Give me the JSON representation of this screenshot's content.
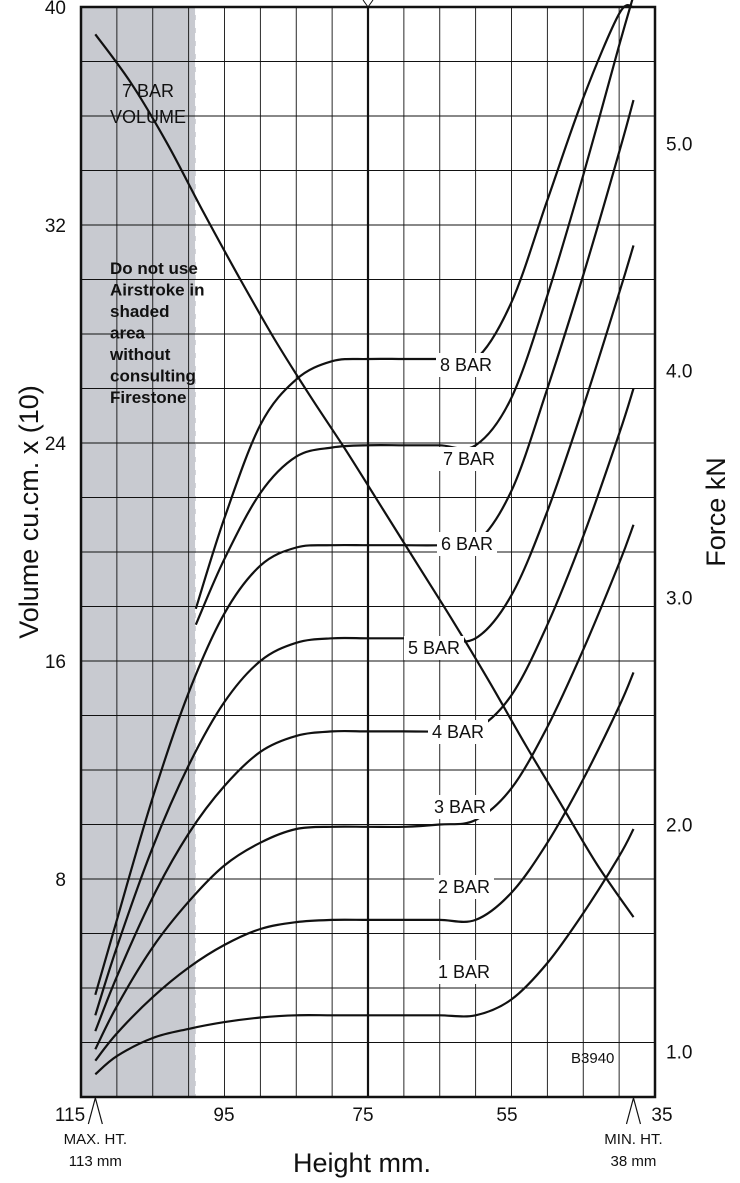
{
  "chart_data": {
    "type": "line",
    "xlabel": "Height mm.",
    "ylabel_left": "Volume cu.cm. x (10)",
    "ylabel_right": "Force kN",
    "xlim": [
      115,
      35
    ],
    "ylim_left": [
      0,
      40
    ],
    "ylim_right": [
      0.8,
      5.6
    ],
    "x_ticks": [
      "115",
      "95",
      "75",
      "55",
      "35"
    ],
    "y_left_ticks": [
      "8",
      "16",
      "24",
      "32",
      "40"
    ],
    "y_right_ticks": [
      "1.0",
      "2.0",
      "3.0",
      "4.0",
      "5.0"
    ],
    "shaded_region": {
      "x_range": [
        115,
        99
      ],
      "color": "#c8cad0"
    },
    "shaded_note": [
      "Do not use",
      "Airstroke in",
      "shaded",
      "area",
      "without",
      "consulting",
      "Firestone"
    ],
    "marker_max": {
      "x": 113,
      "label": [
        "MAX. HT.",
        "113 mm"
      ]
    },
    "marker_min": {
      "x": 38,
      "label": [
        "MIN. HT.",
        "38 mm"
      ]
    },
    "code": "B3940",
    "volume_label": [
      "7 BAR",
      "VOLUME"
    ],
    "volume_series": {
      "name": "7 BAR VOLUME",
      "axis": "left",
      "x": [
        113,
        108,
        103,
        98,
        93,
        88,
        83,
        78,
        73,
        68,
        63,
        58,
        53,
        48,
        43,
        38
      ],
      "values": [
        39,
        37.2,
        35,
        32.5,
        30.1,
        27.8,
        25.7,
        23.7,
        21.6,
        19.5,
        17.4,
        15.2,
        12.9,
        10.7,
        8.5,
        6.6
      ]
    },
    "series": [
      {
        "name": "1 BAR",
        "axis": "right",
        "x": [
          113,
          110,
          105,
          100,
          95,
          90,
          85,
          80,
          75,
          70,
          65,
          60,
          55,
          50,
          45,
          40,
          38
        ],
        "values": [
          0.9,
          0.98,
          1.06,
          1.1,
          1.13,
          1.15,
          1.16,
          1.16,
          1.16,
          1.16,
          1.16,
          1.16,
          1.23,
          1.39,
          1.61,
          1.86,
          1.98
        ]
      },
      {
        "name": "2 BAR",
        "axis": "right",
        "x": [
          113,
          110,
          105,
          100,
          95,
          90,
          85,
          80,
          75,
          70,
          65,
          60,
          55,
          50,
          45,
          40,
          38
        ],
        "values": [
          0.96,
          1.08,
          1.24,
          1.37,
          1.47,
          1.54,
          1.57,
          1.58,
          1.58,
          1.58,
          1.58,
          1.58,
          1.7,
          1.92,
          2.2,
          2.52,
          2.67
        ]
      },
      {
        "name": "3 BAR",
        "axis": "right",
        "x": [
          113,
          110,
          105,
          100,
          95,
          90,
          85,
          80,
          75,
          70,
          65,
          60,
          55,
          50,
          45,
          40,
          38
        ],
        "values": [
          1.01,
          1.2,
          1.46,
          1.66,
          1.82,
          1.92,
          1.98,
          1.99,
          1.99,
          1.99,
          2.0,
          2.02,
          2.16,
          2.43,
          2.77,
          3.15,
          3.32
        ]
      },
      {
        "name": "4 BAR",
        "axis": "right",
        "x": [
          113,
          110,
          105,
          100,
          95,
          90,
          85,
          80,
          75,
          70,
          65,
          60,
          55,
          50,
          45,
          40,
          38
        ],
        "values": [
          1.09,
          1.33,
          1.68,
          1.96,
          2.17,
          2.32,
          2.39,
          2.41,
          2.41,
          2.41,
          2.41,
          2.42,
          2.57,
          2.88,
          3.27,
          3.72,
          3.92
        ]
      },
      {
        "name": "5 BAR",
        "axis": "right",
        "x": [
          113,
          110,
          105,
          100,
          95,
          90,
          85,
          80,
          75,
          70,
          65,
          60,
          55,
          50,
          45,
          40,
          38
        ],
        "values": [
          1.16,
          1.46,
          1.9,
          2.26,
          2.54,
          2.72,
          2.8,
          2.82,
          2.82,
          2.82,
          2.82,
          2.82,
          3.01,
          3.38,
          3.84,
          4.34,
          4.55
        ]
      },
      {
        "name": "6 BAR",
        "axis": "right",
        "x": [
          113,
          110,
          105,
          100,
          95,
          90,
          85,
          80,
          75,
          70,
          65,
          60,
          55,
          50,
          45,
          40,
          38
        ],
        "values": [
          1.25,
          1.58,
          2.12,
          2.58,
          2.93,
          3.14,
          3.22,
          3.23,
          3.23,
          3.23,
          3.23,
          3.24,
          3.47,
          3.92,
          4.42,
          4.96,
          5.19
        ]
      },
      {
        "name": "7 BAR",
        "axis": "right",
        "x": [
          99,
          95,
          90,
          85,
          80,
          75,
          70,
          65,
          60,
          55,
          50,
          45,
          40,
          38
        ],
        "values": [
          2.88,
          3.17,
          3.46,
          3.62,
          3.66,
          3.67,
          3.67,
          3.67,
          3.67,
          3.88,
          4.33,
          4.86,
          5.43,
          5.65
        ]
      },
      {
        "name": "8 BAR",
        "axis": "right",
        "x": [
          99,
          95,
          90,
          85,
          80,
          75,
          70,
          65,
          60,
          55,
          50,
          45,
          40,
          38
        ],
        "values": [
          2.95,
          3.35,
          3.76,
          3.96,
          4.04,
          4.05,
          4.05,
          4.05,
          4.05,
          4.3,
          4.75,
          5.2,
          5.57,
          5.6
        ]
      }
    ]
  }
}
